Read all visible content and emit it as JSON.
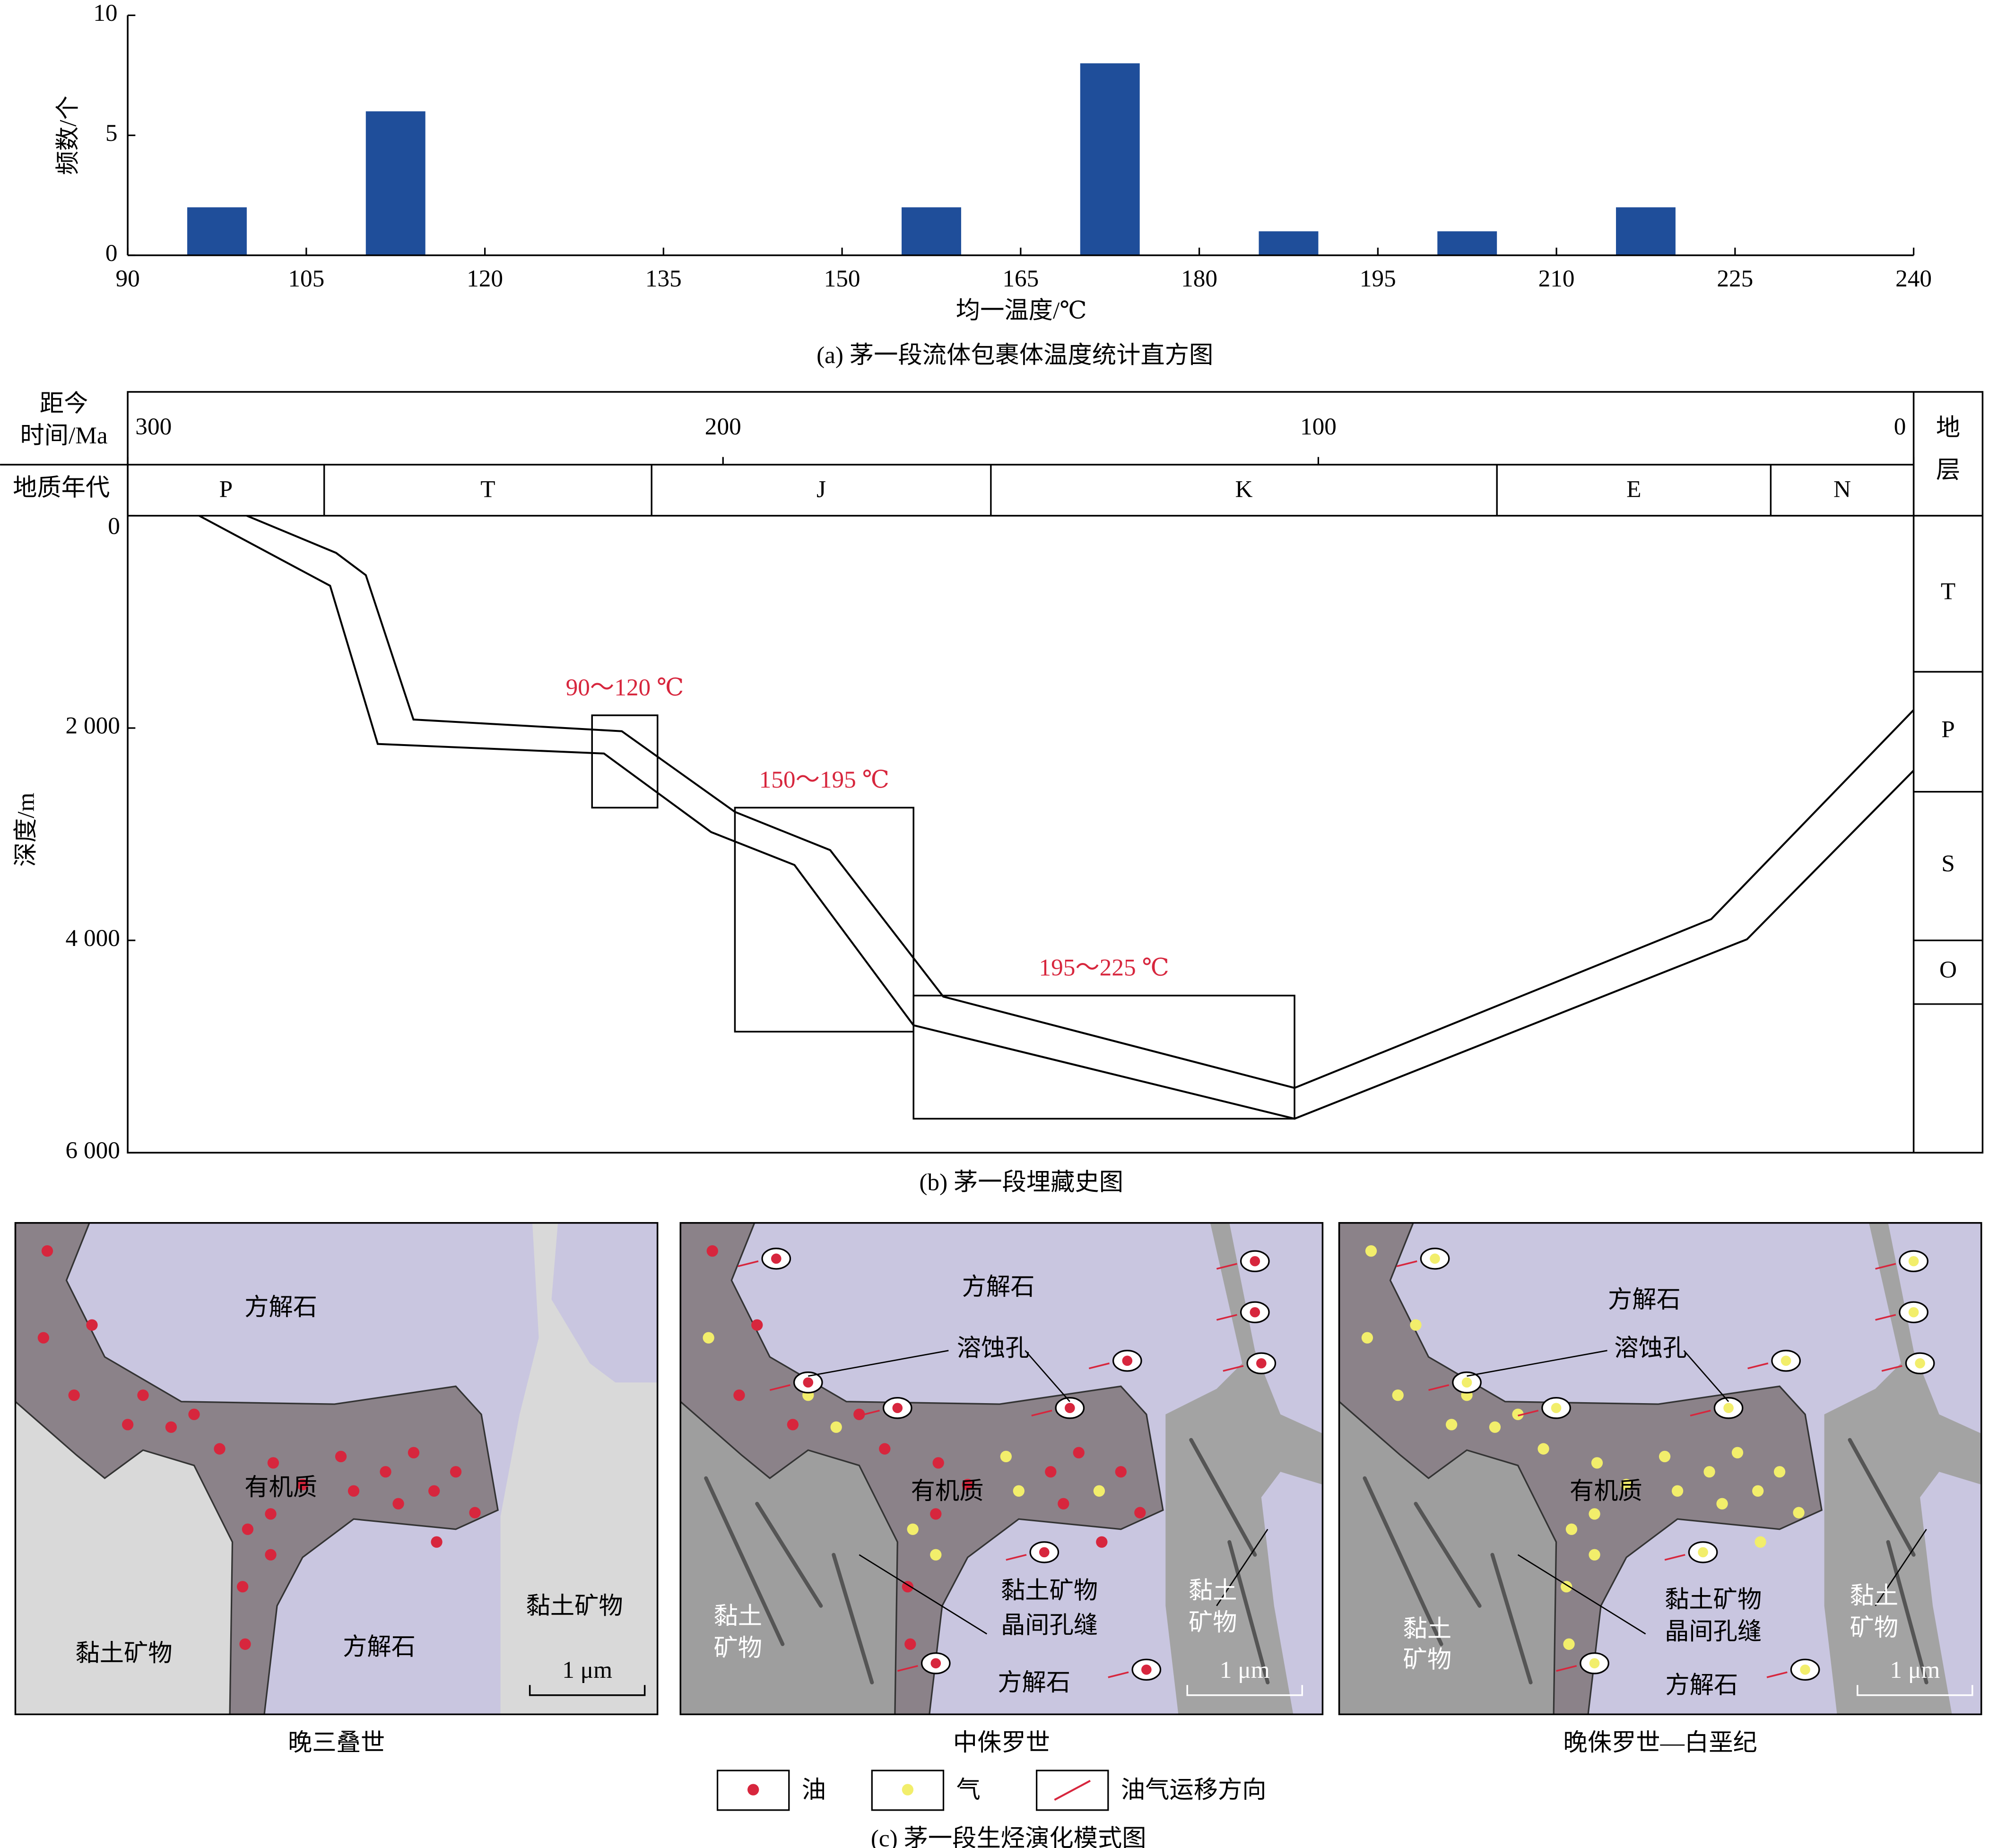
{
  "chart_data": [
    {
      "type": "histogram",
      "title": "(a) 茅一段流体包裹体温度统计直方图",
      "x_label": "均一温度/℃",
      "y_label": "频数/个",
      "bins": [
        95,
        100,
        105,
        110,
        115,
        120,
        125,
        130,
        135,
        140,
        145,
        150,
        155,
        160,
        165,
        170,
        175,
        180,
        185,
        190,
        195,
        200,
        205,
        210,
        215,
        220
      ],
      "values": [
        2,
        0,
        0,
        6,
        0,
        0,
        0,
        0,
        0,
        0,
        0,
        0,
        2,
        0,
        0,
        8,
        0,
        0,
        1,
        0,
        0,
        1,
        0,
        0,
        2
      ],
      "color": "#1f4e9a",
      "xlim": [
        90,
        240
      ],
      "xticks": [
        90,
        105,
        120,
        135,
        150,
        165,
        180,
        195,
        210,
        225,
        240
      ],
      "ylim": [
        0,
        10
      ],
      "yticks": [
        0,
        5,
        10
      ]
    },
    {
      "type": "line",
      "title": "(b) 茅一段埋藏史图",
      "x_label": [
        "距今",
        "时间/Ma"
      ],
      "period_label": "地质年代",
      "y_label": "深度/m",
      "strata_label": [
        "地",
        "层"
      ],
      "xlim": [
        300,
        0
      ],
      "xticks": [
        300,
        200,
        100,
        0
      ],
      "ylim": [
        0,
        6000
      ],
      "yticks": [
        0,
        {
          "value": 2000,
          "label": "2 000"
        },
        {
          "value": 4000,
          "label": "4 000"
        },
        {
          "value": 6000,
          "label": "6 000"
        }
      ],
      "color": "#000000",
      "series": [
        {
          "x": [
            280,
            265,
            260,
            252,
            217,
            198,
            182,
            163,
            104,
            34,
            0
          ],
          "values": [
            0,
            350,
            560,
            1920,
            2030,
            2790,
            3150,
            4530,
            5390,
            3800,
            1830
          ]
        },
        {
          "x": [
            288,
            282,
            266,
            258,
            220,
            202,
            188,
            168,
            104,
            28,
            0
          ],
          "values": [
            0,
            180,
            660,
            2150,
            2240,
            2980,
            3290,
            4800,
            5680,
            3990,
            2400
          ]
        }
      ],
      "periods": [
        {
          "name": "P",
          "start": 300,
          "end": 267
        },
        {
          "name": "T",
          "start": 267,
          "end": 212
        },
        {
          "name": "J",
          "start": 212,
          "end": 155
        },
        {
          "name": "K",
          "start": 155,
          "end": 70
        },
        {
          "name": "E",
          "start": 70,
          "end": 24
        },
        {
          "name": "N",
          "start": 24,
          "end": 0
        }
      ],
      "strata": [
        {
          "name": "T",
          "top": 0,
          "bottom": 1470
        },
        {
          "name": "P",
          "top": 1470,
          "bottom": 2600
        },
        {
          "name": "S",
          "top": 2600,
          "bottom": 4000
        },
        {
          "name": "O",
          "top": 4000,
          "bottom": 4600
        }
      ],
      "boxes": [
        {
          "label": "90～120 ℃",
          "x": [
            222,
            211
          ],
          "y": [
            1880,
            2750
          ]
        },
        {
          "label": "150～195 ℃",
          "x": [
            198,
            168
          ],
          "y": [
            2750,
            4860
          ]
        },
        {
          "label": "195～225 ℃",
          "x": [
            168,
            104
          ],
          "y": [
            4520,
            5680
          ]
        }
      ],
      "annotation_color": "#d7263d"
    }
  ],
  "diagram": {
    "title": "(c) 茅一段生烃演化模式图",
    "panels": [
      {
        "caption": "晚三叠世",
        "labels": [
          "方解石",
          "有机质",
          "黏土矿物",
          "方解石",
          "黏土矿物",
          "1 μm"
        ]
      },
      {
        "caption": "中侏罗世",
        "labels": [
          "方解石",
          "溶蚀孔",
          "有机质",
          "黏土矿物",
          "晶间孔缝",
          "黏土",
          "矿物",
          "黏土",
          "矿物",
          "方解石",
          "1 μm"
        ]
      },
      {
        "caption": "晚侏罗世—白垩纪",
        "labels": [
          "方解石",
          "溶蚀孔",
          "有机质",
          "黏土矿物",
          "晶间孔缝",
          "黏土",
          "矿物",
          "黏土",
          "矿物",
          "方解石",
          "1 μm"
        ]
      }
    ],
    "legend": [
      "油",
      "气",
      "油气运移方向"
    ]
  }
}
